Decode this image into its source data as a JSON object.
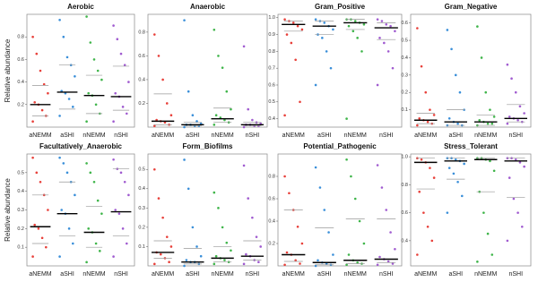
{
  "chart_data": [
    {
      "type": "scatter",
      "title": "Aerobic",
      "ylabel": "Relative  abundance",
      "categories": [
        "aNEMM",
        "aSHI",
        "nNEMM",
        "nSHI"
      ],
      "ylim": [
        0,
        1
      ],
      "yticks": [
        0.2,
        0.4,
        0.6,
        0.8
      ],
      "series": [
        {
          "color": "#e8403a",
          "values": [
            0.05,
            0.1,
            0.15,
            0.2,
            0.22,
            0.3,
            0.38,
            0.5,
            0.65,
            0.8
          ]
        },
        {
          "color": "#3a8fd9",
          "values": [
            0.1,
            0.18,
            0.25,
            0.3,
            0.32,
            0.45,
            0.55,
            0.62,
            0.8,
            0.95
          ]
        },
        {
          "color": "#3fb54a",
          "values": [
            0.05,
            0.12,
            0.2,
            0.28,
            0.3,
            0.42,
            0.5,
            0.6,
            0.75,
            0.98
          ]
        },
        {
          "color": "#a05bd0",
          "values": [
            0.05,
            0.12,
            0.18,
            0.27,
            0.3,
            0.4,
            0.55,
            0.65,
            0.78,
            0.9
          ]
        }
      ],
      "medians": [
        0.2,
        0.31,
        0.28,
        0.27
      ],
      "q1": [
        0.1,
        0.16,
        0.12,
        0.15
      ],
      "q3": [
        0.37,
        0.55,
        0.46,
        0.54
      ]
    },
    {
      "type": "scatter",
      "title": "Anaerobic",
      "categories": [
        "aNEMM",
        "aSHI",
        "nNEMM",
        "nSHI"
      ],
      "ylim": [
        0,
        0.95
      ],
      "yticks": [
        0.2,
        0.4,
        0.6,
        0.8
      ],
      "series": [
        {
          "color": "#e8403a",
          "values": [
            0.01,
            0.02,
            0.04,
            0.05,
            0.06,
            0.1,
            0.2,
            0.4,
            0.6,
            0.78
          ]
        },
        {
          "color": "#3a8fd9",
          "values": [
            0,
            0.01,
            0.01,
            0.02,
            0.02,
            0.03,
            0.05,
            0.1,
            0.3,
            0.9
          ]
        },
        {
          "color": "#3fb54a",
          "values": [
            0.02,
            0.04,
            0.06,
            0.08,
            0.1,
            0.15,
            0.3,
            0.5,
            0.6,
            0.82
          ]
        },
        {
          "color": "#a05bd0",
          "values": [
            0,
            0.01,
            0.01,
            0.02,
            0.02,
            0.03,
            0.04,
            0.06,
            0.15,
            0.68
          ]
        }
      ],
      "medians": [
        0.05,
        0.02,
        0.07,
        0.02
      ],
      "q1": [
        0.02,
        0.01,
        0.04,
        0.01
      ],
      "q3": [
        0.28,
        0.04,
        0.16,
        0.04
      ]
    },
    {
      "type": "scatter",
      "title": "Gram_Positive",
      "categories": [
        "aNEMM",
        "aSHI",
        "nNEMM",
        "nSHI"
      ],
      "ylim": [
        0.35,
        1.02
      ],
      "yticks": [
        0.4,
        0.5,
        0.6,
        0.7,
        0.8,
        0.9,
        {
          "value": 1,
          "label": "1.0"
        }
      ],
      "series": [
        {
          "color": "#e8403a",
          "values": [
            0.42,
            0.5,
            0.75,
            0.85,
            0.9,
            0.93,
            0.95,
            0.97,
            0.98,
            0.99
          ]
        },
        {
          "color": "#3a8fd9",
          "values": [
            0.6,
            0.7,
            0.8,
            0.88,
            0.9,
            0.93,
            0.95,
            0.97,
            0.98,
            0.99
          ]
        },
        {
          "color": "#3fb54a",
          "values": [
            0.4,
            0.8,
            0.88,
            0.92,
            0.95,
            0.96,
            0.97,
            0.98,
            0.99,
            0.99
          ]
        },
        {
          "color": "#a05bd0",
          "values": [
            0.6,
            0.7,
            0.8,
            0.85,
            0.88,
            0.92,
            0.95,
            0.96,
            0.98,
            0.99
          ]
        }
      ],
      "medians": [
        0.96,
        0.95,
        0.97,
        0.94
      ],
      "q1": [
        0.92,
        0.9,
        0.93,
        0.87
      ],
      "q3": [
        0.98,
        0.98,
        0.99,
        0.97
      ]
    },
    {
      "type": "scatter",
      "title": "Gram_Negative",
      "categories": [
        "aNEMM",
        "aSHI",
        "nNEMM",
        "nSHI"
      ],
      "ylim": [
        0,
        0.65
      ],
      "yticks": [
        0.1,
        0.2,
        0.3,
        0.4,
        0.5,
        0.6
      ],
      "series": [
        {
          "color": "#e8403a",
          "values": [
            0.01,
            0.02,
            0.03,
            0.04,
            0.05,
            0.07,
            0.1,
            0.2,
            0.35,
            0.57
          ]
        },
        {
          "color": "#3a8fd9",
          "values": [
            0.01,
            0.01,
            0.02,
            0.03,
            0.05,
            0.1,
            0.2,
            0.3,
            0.45,
            0.56
          ]
        },
        {
          "color": "#3fb54a",
          "values": [
            0.01,
            0.02,
            0.02,
            0.03,
            0.04,
            0.06,
            0.1,
            0.2,
            0.4,
            0.58
          ]
        },
        {
          "color": "#a05bd0",
          "values": [
            0.02,
            0.03,
            0.04,
            0.05,
            0.06,
            0.08,
            0.12,
            0.2,
            0.28,
            0.36
          ]
        }
      ],
      "medians": [
        0.04,
        0.03,
        0.03,
        0.05
      ],
      "q1": [
        0.02,
        0.01,
        0.01,
        0.03
      ],
      "q3": [
        0.08,
        0.1,
        0.07,
        0.13
      ]
    },
    {
      "type": "scatter",
      "title": "Facultatively_Anaerobic",
      "ylabel": "Relative  abundance",
      "categories": [
        "aNEMM",
        "aSHI",
        "nNEMM",
        "nSHI"
      ],
      "ylim": [
        0,
        0.6
      ],
      "yticks": [
        0.1,
        0.2,
        0.3,
        0.4,
        0.5
      ],
      "series": [
        {
          "color": "#e8403a",
          "values": [
            0.05,
            0.1,
            0.15,
            0.2,
            0.22,
            0.3,
            0.38,
            0.45,
            0.5,
            0.58
          ]
        },
        {
          "color": "#3a8fd9",
          "values": [
            0.05,
            0.12,
            0.2,
            0.28,
            0.3,
            0.38,
            0.45,
            0.5,
            0.55,
            0.58
          ]
        },
        {
          "color": "#3fb54a",
          "values": [
            0.02,
            0.08,
            0.12,
            0.18,
            0.2,
            0.28,
            0.35,
            0.45,
            0.5,
            0.55
          ]
        },
        {
          "color": "#a05bd0",
          "values": [
            0.05,
            0.12,
            0.2,
            0.28,
            0.3,
            0.38,
            0.45,
            0.5,
            0.52,
            0.57
          ]
        }
      ],
      "medians": [
        0.21,
        0.28,
        0.18,
        0.29
      ],
      "q1": [
        0.12,
        0.16,
        0.1,
        0.16
      ],
      "q3": [
        0.38,
        0.45,
        0.32,
        0.52
      ]
    },
    {
      "type": "scatter",
      "title": "Form_Biofilms",
      "categories": [
        "aNEMM",
        "aSHI",
        "nNEMM",
        "nSHI"
      ],
      "ylim": [
        0,
        0.58
      ],
      "yticks": [
        0.1,
        0.2,
        0.3,
        0.4,
        0.5
      ],
      "series": [
        {
          "color": "#e8403a",
          "values": [
            0.01,
            0.02,
            0.04,
            0.06,
            0.07,
            0.1,
            0.15,
            0.25,
            0.35,
            0.5
          ]
        },
        {
          "color": "#3a8fd9",
          "values": [
            0,
            0.01,
            0.02,
            0.02,
            0.03,
            0.05,
            0.1,
            0.2,
            0.4,
            0.55
          ]
        },
        {
          "color": "#3fb54a",
          "values": [
            0.01,
            0.02,
            0.03,
            0.04,
            0.05,
            0.08,
            0.12,
            0.2,
            0.3,
            0.38
          ]
        },
        {
          "color": "#a05bd0",
          "values": [
            0.01,
            0.02,
            0.03,
            0.05,
            0.06,
            0.1,
            0.15,
            0.25,
            0.35,
            0.52
          ]
        }
      ],
      "medians": [
        0.07,
        0.02,
        0.04,
        0.05
      ],
      "q1": [
        0.04,
        0.01,
        0.02,
        0.03
      ],
      "q3": [
        0.13,
        0.09,
        0.1,
        0.13
      ]
    },
    {
      "type": "scatter",
      "title": "Potential_Pathogenic",
      "categories": [
        "aNEMM",
        "aSHI",
        "nNEMM",
        "nSHI"
      ],
      "ylim": [
        0,
        1
      ],
      "yticks": [
        0.2,
        0.4,
        0.6,
        0.8
      ],
      "series": [
        {
          "color": "#e8403a",
          "values": [
            0.01,
            0.02,
            0.05,
            0.1,
            0.12,
            0.2,
            0.35,
            0.5,
            0.65,
            0.8
          ]
        },
        {
          "color": "#3a8fd9",
          "values": [
            0,
            0.01,
            0.02,
            0.03,
            0.05,
            0.1,
            0.3,
            0.5,
            0.7,
            0.88
          ]
        },
        {
          "color": "#3fb54a",
          "values": [
            0.01,
            0.02,
            0.03,
            0.05,
            0.1,
            0.2,
            0.4,
            0.6,
            0.8,
            0.95
          ]
        },
        {
          "color": "#a05bd0",
          "values": [
            0.01,
            0.02,
            0.04,
            0.06,
            0.08,
            0.15,
            0.3,
            0.5,
            0.7,
            0.9
          ]
        }
      ],
      "medians": [
        0.1,
        0.03,
        0.05,
        0.06
      ],
      "q1": [
        0.04,
        0.01,
        0.02,
        0.03
      ],
      "q3": [
        0.5,
        0.34,
        0.42,
        0.42
      ]
    },
    {
      "type": "scatter",
      "title": "Stress_Tolerant",
      "categories": [
        "aNEMM",
        "aSHI",
        "nNEMM",
        "nSHI"
      ],
      "ylim": [
        0.22,
        1.02
      ],
      "yticks": [
        0.4,
        0.6,
        0.8,
        {
          "value": 1,
          "label": "1.0"
        }
      ],
      "series": [
        {
          "color": "#e8403a",
          "values": [
            0.3,
            0.4,
            0.5,
            0.6,
            0.75,
            0.85,
            0.92,
            0.96,
            0.98,
            0.99
          ]
        },
        {
          "color": "#3a8fd9",
          "values": [
            0.6,
            0.72,
            0.82,
            0.88,
            0.92,
            0.95,
            0.97,
            0.98,
            0.99,
            0.99
          ]
        },
        {
          "color": "#3fb54a",
          "values": [
            0.25,
            0.3,
            0.45,
            0.6,
            0.75,
            0.9,
            0.97,
            0.98,
            0.99,
            0.99
          ]
        },
        {
          "color": "#a05bd0",
          "values": [
            0.4,
            0.5,
            0.6,
            0.7,
            0.85,
            0.93,
            0.96,
            0.98,
            0.99,
            0.99
          ]
        }
      ],
      "medians": [
        0.96,
        0.97,
        0.98,
        0.97
      ],
      "q1": [
        0.77,
        0.84,
        0.75,
        0.71
      ],
      "q3": [
        0.99,
        0.99,
        0.99,
        0.99
      ]
    }
  ]
}
